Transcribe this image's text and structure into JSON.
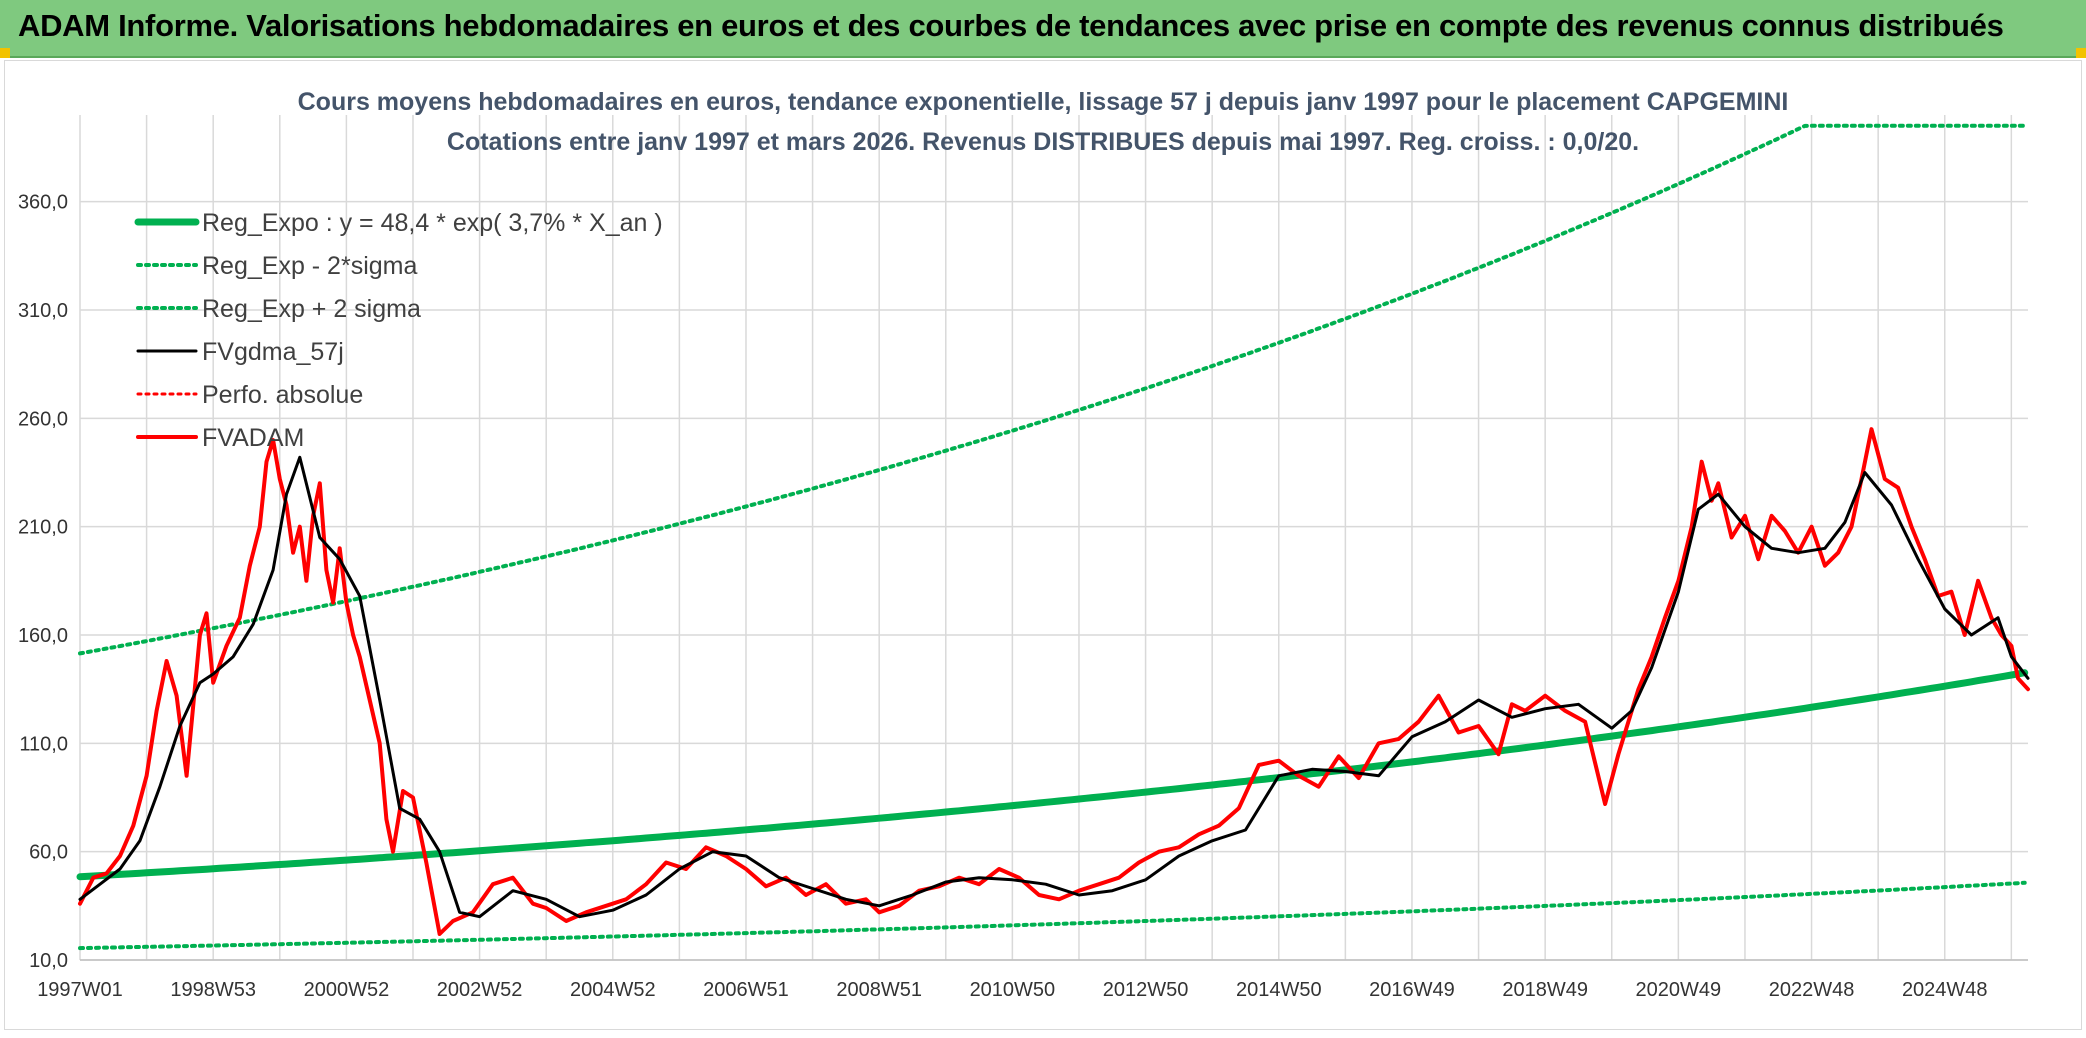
{
  "header": {
    "title": "ADAM Informe. Valorisations hebdomadaires en euros et des courbes de tendances avec prise en compte des revenus connus distribués"
  },
  "chart_data": {
    "type": "line",
    "title": "Cours moyens hebdomadaires en euros, tendance exponentielle, lissage 57 j depuis janv 1997 pour le placement CAPGEMINI",
    "subtitle": "Cotations entre janv 1997 et mars 2026. Revenus DISTRIBUES depuis mai 1997. Reg. croiss. : 0,0/20.",
    "xlabel": "",
    "ylabel": "",
    "xlim": [
      1997.0,
      2026.25
    ],
    "ylim": [
      10,
      400
    ],
    "y_ticks": [
      10,
      60,
      110,
      160,
      210,
      260,
      310,
      360
    ],
    "y_tick_labels": [
      "10,0",
      "60,0",
      "110,0",
      "160,0",
      "210,0",
      "260,0",
      "310,0",
      "360,0"
    ],
    "x_ticks": [
      1997.0,
      1999.0,
      2001.0,
      2003.0,
      2005.0,
      2007.0,
      2009.0,
      2011.0,
      2013.0,
      2015.0,
      2017.0,
      2019.0,
      2021.0,
      2023.0,
      2025.0
    ],
    "x_tick_labels": [
      "1997W01",
      "1998W53",
      "2000W52",
      "2002W52",
      "2004W52",
      "2006W51",
      "2008W51",
      "2010W50",
      "2012W50",
      "2014W50",
      "2016W49",
      "2018W49",
      "2020W49",
      "2022W48",
      "2024W48"
    ],
    "grid": true,
    "legend_position": "top-left",
    "regression": {
      "a": 48.4,
      "rate": 0.037,
      "sigma_factor_upper": 3.13,
      "sigma_factor_lower": 0.32,
      "start_year": 1997.0
    },
    "series": [
      {
        "name": "Reg_Expo : y = 48,4 * exp( 3,7% *  X_an )",
        "color": "#00b050",
        "style": "solid",
        "width": 7,
        "x": [
          1997.0,
          2026.25
        ],
        "values": [
          48.4,
          143.0
        ]
      },
      {
        "name": "Reg_Exp - 2*sigma",
        "color": "#00b050",
        "style": "dotted",
        "width": 4,
        "x": [
          1997.0,
          2026.25
        ],
        "values": [
          15.5,
          45.5
        ]
      },
      {
        "name": "Reg_Exp + 2 sigma",
        "color": "#00b050",
        "style": "dotted",
        "width": 4,
        "x": [
          1997.0,
          2026.25
        ],
        "values": [
          152.0,
          395.0
        ]
      },
      {
        "name": "FVgdma_57j",
        "color": "#000000",
        "style": "solid",
        "width": 3,
        "x": [
          1997.0,
          1997.3,
          1997.6,
          1997.9,
          1998.2,
          1998.5,
          1998.8,
          1999.0,
          1999.3,
          1999.6,
          1999.9,
          2000.1,
          2000.3,
          2000.6,
          2000.9,
          2001.2,
          2001.5,
          2001.8,
          2002.1,
          2002.4,
          2002.7,
          2003.0,
          2003.5,
          2004.0,
          2004.5,
          2005.0,
          2005.5,
          2006.0,
          2006.5,
          2007.0,
          2007.5,
          2008.0,
          2008.5,
          2009.0,
          2009.5,
          2010.0,
          2010.5,
          2011.0,
          2011.5,
          2012.0,
          2012.5,
          2013.0,
          2013.5,
          2014.0,
          2014.5,
          2015.0,
          2015.5,
          2016.0,
          2016.5,
          2017.0,
          2017.5,
          2018.0,
          2018.5,
          2019.0,
          2019.5,
          2020.0,
          2020.3,
          2020.6,
          2021.0,
          2021.3,
          2021.6,
          2022.0,
          2022.4,
          2022.8,
          2023.2,
          2023.5,
          2023.8,
          2024.2,
          2024.6,
          2025.0,
          2025.4,
          2025.8,
          2026.0,
          2026.25
        ],
        "values": [
          38,
          45,
          52,
          65,
          90,
          118,
          138,
          142,
          150,
          165,
          190,
          225,
          242,
          205,
          195,
          178,
          130,
          80,
          75,
          60,
          32,
          30,
          42,
          38,
          30,
          33,
          40,
          52,
          60,
          58,
          48,
          43,
          38,
          35,
          40,
          46,
          48,
          47,
          45,
          40,
          42,
          47,
          58,
          65,
          70,
          95,
          98,
          97,
          95,
          113,
          120,
          130,
          122,
          126,
          128,
          117,
          125,
          145,
          180,
          218,
          225,
          210,
          200,
          198,
          200,
          212,
          235,
          220,
          195,
          172,
          160,
          168,
          150,
          140
        ]
      },
      {
        "name": "Perfo. absolue",
        "color": "#ff0000",
        "style": "dotted",
        "width": 3,
        "x": [],
        "values": []
      },
      {
        "name": "FVADAM",
        "color": "#ff0000",
        "style": "solid",
        "width": 4,
        "x": [
          1997.0,
          1997.2,
          1997.4,
          1997.6,
          1997.8,
          1998.0,
          1998.15,
          1998.3,
          1998.45,
          1998.6,
          1998.8,
          1998.9,
          1999.0,
          1999.2,
          1999.4,
          1999.55,
          1999.7,
          1999.8,
          1999.9,
          2000.0,
          2000.1,
          2000.2,
          2000.3,
          2000.4,
          2000.5,
          2000.6,
          2000.7,
          2000.8,
          2000.9,
          2001.0,
          2001.1,
          2001.2,
          2001.35,
          2001.5,
          2001.6,
          2001.7,
          2001.85,
          2002.0,
          2002.2,
          2002.4,
          2002.6,
          2002.75,
          2002.9,
          2003.2,
          2003.5,
          2003.8,
          2004.0,
          2004.3,
          2004.6,
          2004.9,
          2005.2,
          2005.5,
          2005.8,
          2006.1,
          2006.4,
          2006.7,
          2007.0,
          2007.3,
          2007.6,
          2007.9,
          2008.2,
          2008.5,
          2008.8,
          2009.0,
          2009.3,
          2009.6,
          2009.9,
          2010.2,
          2010.5,
          2010.8,
          2011.1,
          2011.4,
          2011.7,
          2012.0,
          2012.3,
          2012.6,
          2012.9,
          2013.2,
          2013.5,
          2013.8,
          2014.1,
          2014.4,
          2014.7,
          2015.0,
          2015.3,
          2015.6,
          2015.9,
          2016.2,
          2016.5,
          2016.8,
          2017.1,
          2017.4,
          2017.7,
          2018.0,
          2018.3,
          2018.5,
          2018.7,
          2019.0,
          2019.3,
          2019.6,
          2019.9,
          2020.1,
          2020.25,
          2020.4,
          2020.6,
          2020.8,
          2021.0,
          2021.2,
          2021.35,
          2021.5,
          2021.6,
          2021.8,
          2022.0,
          2022.2,
          2022.4,
          2022.6,
          2022.8,
          2023.0,
          2023.2,
          2023.4,
          2023.6,
          2023.75,
          2023.9,
          2024.1,
          2024.3,
          2024.5,
          2024.7,
          2024.9,
          2025.1,
          2025.3,
          2025.5,
          2025.7,
          2025.85,
          2026.0,
          2026.1,
          2026.25
        ],
        "values": [
          36,
          48,
          50,
          58,
          72,
          95,
          125,
          148,
          132,
          95,
          160,
          170,
          138,
          155,
          168,
          192,
          210,
          240,
          250,
          232,
          220,
          198,
          210,
          185,
          215,
          230,
          190,
          175,
          200,
          175,
          160,
          150,
          130,
          110,
          75,
          60,
          88,
          85,
          55,
          22,
          28,
          30,
          32,
          45,
          48,
          36,
          34,
          28,
          32,
          35,
          38,
          45,
          55,
          52,
          62,
          58,
          52,
          44,
          48,
          40,
          45,
          36,
          38,
          32,
          35,
          42,
          44,
          48,
          45,
          52,
          48,
          40,
          38,
          42,
          45,
          48,
          55,
          60,
          62,
          68,
          72,
          80,
          100,
          102,
          95,
          90,
          104,
          94,
          110,
          112,
          120,
          132,
          115,
          118,
          105,
          128,
          125,
          132,
          125,
          120,
          82,
          105,
          120,
          135,
          150,
          168,
          185,
          210,
          240,
          222,
          230,
          205,
          215,
          195,
          215,
          208,
          198,
          210,
          192,
          198,
          210,
          232,
          255,
          232,
          228,
          210,
          195,
          178,
          180,
          160,
          185,
          168,
          160,
          155,
          140,
          135
        ]
      }
    ]
  }
}
